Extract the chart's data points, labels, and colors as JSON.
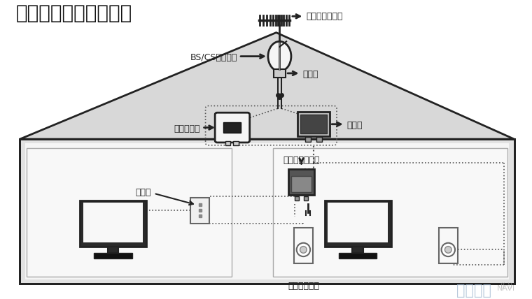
{
  "title": "アンテナ工事の全体図",
  "bg_color": "#ffffff",
  "labels": {
    "terrestrial_antenna": "地デジアンテナ",
    "bs_cs_antenna": "BS/CSアンテナ",
    "mixer": "混合器",
    "booster": "ブースター",
    "distributor": "分配器",
    "booster_power": "ブースター電源",
    "splitter": "分波器",
    "antenna_terminal": "アンテナ端子",
    "watermark1": "アンテナ",
    "watermark2": "NAVI"
  },
  "roof_color": "#d4d4d4",
  "house_floor_color": "#e0e0e0",
  "room_color": "#f0f0f0",
  "line_color": "#222222",
  "dot_line_color": "#555555"
}
